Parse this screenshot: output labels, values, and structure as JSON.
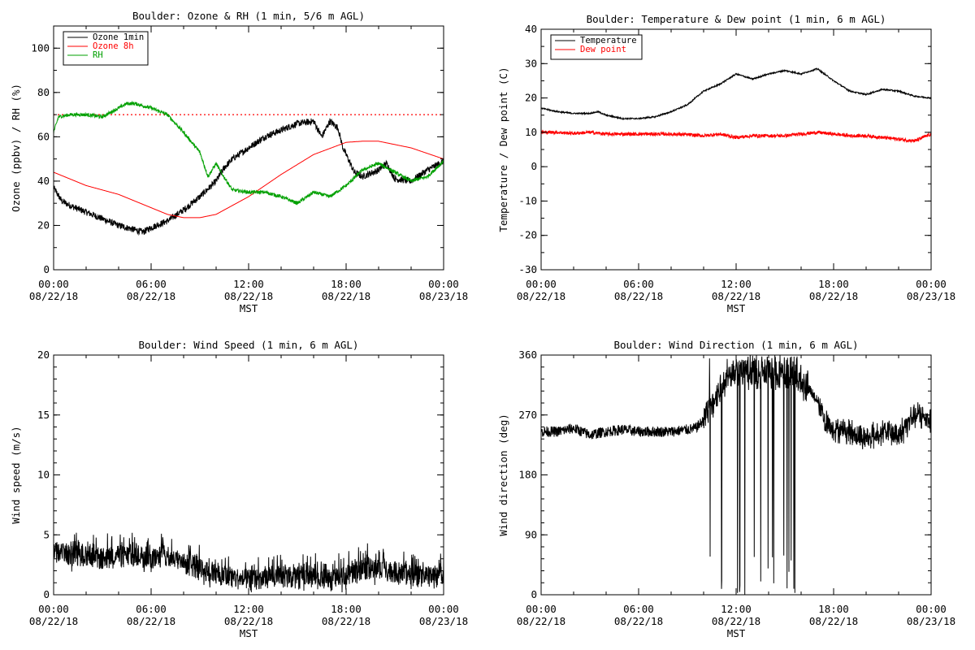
{
  "x_ticks": [
    {
      "hours": 0,
      "time": "00:00",
      "date": "08/22/18"
    },
    {
      "hours": 6,
      "time": "06:00",
      "date": "08/22/18"
    },
    {
      "hours": 12,
      "time": "12:00",
      "date": "08/22/18"
    },
    {
      "hours": 18,
      "time": "18:00",
      "date": "08/22/18"
    },
    {
      "hours": 24,
      "time": "00:00",
      "date": "08/23/18"
    }
  ],
  "chart_data": [
    {
      "id": "ozone",
      "type": "line",
      "title": "Boulder: Ozone & RH (1 min, 5/6 m AGL)",
      "ylabel": "Ozone (ppbv) / RH (%)",
      "xlabel": "MST",
      "xlim": [
        0,
        24
      ],
      "ylim": [
        0,
        110
      ],
      "yticks": [
        0,
        20,
        40,
        60,
        80,
        100
      ],
      "reference_line": {
        "y": 70,
        "style": "dotted",
        "color": "#ff0000"
      },
      "legend_position": "top-left",
      "series": [
        {
          "name": "Ozone 1min",
          "color": "#000000",
          "noise": 1.5,
          "x": [
            0,
            0.5,
            1,
            2,
            3,
            4,
            5,
            5.5,
            6,
            7,
            8,
            9,
            10,
            10.5,
            11,
            12,
            13,
            14,
            15,
            16,
            16.5,
            17,
            17.5,
            17.8,
            18,
            18.5,
            19,
            20,
            20.5,
            21,
            22,
            23,
            24
          ],
          "y": [
            37,
            31,
            29,
            26,
            23,
            20,
            18,
            17,
            19,
            22,
            27,
            33,
            40,
            46,
            50,
            55,
            60,
            63,
            66,
            67,
            60,
            67,
            64,
            55,
            52,
            44,
            42,
            45,
            48,
            41,
            40,
            45,
            49
          ]
        },
        {
          "name": "Ozone 8h",
          "color": "#ff0000",
          "noise": 0,
          "x": [
            0,
            2,
            4,
            6,
            7,
            8,
            9,
            10,
            12,
            14,
            16,
            18,
            19,
            20,
            22,
            24
          ],
          "y": [
            44,
            38,
            34,
            28,
            25,
            23.5,
            23.5,
            25,
            33,
            43,
            52,
            57.5,
            58,
            58,
            55,
            50
          ]
        },
        {
          "name": "RH",
          "color": "#00a000",
          "noise": 0.8,
          "x": [
            0,
            0.3,
            1,
            2,
            3,
            4,
            4.5,
            5,
            6,
            7,
            8,
            9,
            9.5,
            10,
            10.3,
            11,
            12,
            13,
            14,
            15,
            16,
            17,
            18,
            19,
            20,
            21,
            22,
            23,
            24
          ],
          "y": [
            62,
            69,
            70,
            70,
            69,
            73,
            75,
            75,
            73,
            70,
            62,
            53,
            42,
            48,
            44,
            36,
            35,
            35,
            33,
            30,
            35,
            33,
            38,
            45,
            48,
            44,
            40,
            42,
            49
          ]
        }
      ]
    },
    {
      "id": "temp",
      "type": "line",
      "title": "Boulder: Temperature & Dew point (1 min, 6 m AGL)",
      "ylabel": "Temperature / Dew point (C)",
      "xlabel": "MST",
      "xlim": [
        0,
        24
      ],
      "ylim": [
        -30,
        40
      ],
      "yticks": [
        -30,
        -20,
        -10,
        0,
        10,
        20,
        30,
        40
      ],
      "legend_position": "top-left",
      "series": [
        {
          "name": "Temperature",
          "color": "#000000",
          "noise": 0.2,
          "x": [
            0,
            1,
            2,
            3,
            3.5,
            4,
            5,
            6,
            7,
            8,
            9,
            10,
            11,
            12,
            13,
            14,
            15,
            16,
            17,
            18,
            19,
            20,
            21,
            22,
            23,
            24
          ],
          "y": [
            17,
            16,
            15.5,
            15.5,
            16,
            15,
            14,
            14,
            14.5,
            16,
            18,
            22,
            24,
            27,
            25.5,
            27,
            28,
            27,
            28.5,
            25,
            22,
            21,
            22.5,
            22,
            20.5,
            20
          ]
        },
        {
          "name": "Dew point",
          "color": "#ff0000",
          "noise": 0.5,
          "x": [
            0,
            1,
            2,
            3,
            4,
            5,
            6,
            7,
            8,
            9,
            10,
            11,
            12,
            13,
            14,
            15,
            16,
            17,
            18,
            19,
            20,
            21,
            22,
            23,
            24
          ],
          "y": [
            10,
            10,
            9.7,
            10,
            9.5,
            9.5,
            9.5,
            9.5,
            9.5,
            9.3,
            9,
            9.5,
            8.5,
            9,
            9,
            9,
            9.5,
            10,
            9.5,
            9,
            9,
            8.5,
            8,
            7.5,
            9.5
          ]
        }
      ]
    },
    {
      "id": "wspd",
      "type": "line",
      "title": "Boulder: Wind Speed (1 min, 6 m AGL)",
      "ylabel": "Wind speed (m/s)",
      "xlabel": "MST",
      "xlim": [
        0,
        24
      ],
      "ylim": [
        0,
        20
      ],
      "yticks": [
        0,
        5,
        10,
        15,
        20
      ],
      "series": [
        {
          "name": "",
          "color": "#000000",
          "noise": 0.9,
          "x": [
            0,
            1,
            2,
            3,
            4,
            5,
            6,
            7,
            8,
            9,
            10,
            11,
            12,
            13,
            14,
            15,
            16,
            17,
            18,
            19,
            20,
            21,
            22,
            23,
            24
          ],
          "y": [
            3.5,
            3.3,
            3.2,
            3.0,
            3.2,
            3.3,
            3.0,
            3.3,
            2.6,
            2.1,
            1.7,
            1.4,
            1.2,
            1.4,
            1.5,
            1.4,
            1.4,
            1.2,
            1.5,
            2.2,
            2.1,
            1.9,
            1.6,
            1.5,
            1.8
          ]
        }
      ]
    },
    {
      "id": "wdir",
      "type": "line",
      "title": "Boulder: Wind Direction (1 min, 6 m AGL)",
      "ylabel": "Wind direction (deg)",
      "xlabel": "MST",
      "xlim": [
        0,
        24
      ],
      "ylim": [
        0,
        360
      ],
      "yticks": [
        0,
        90,
        180,
        270,
        360
      ],
      "series": [
        {
          "name": "",
          "color": "#000000",
          "noise": 8,
          "x": [
            0,
            1,
            2,
            3,
            4,
            5,
            6,
            7,
            8,
            9,
            9.5,
            10,
            10.5,
            11,
            11.5,
            12,
            13,
            14,
            15,
            16,
            16.5,
            17,
            17.5,
            18,
            19,
            20,
            21,
            22,
            23,
            24
          ],
          "y": [
            245,
            245,
            250,
            240,
            245,
            248,
            245,
            245,
            245,
            248,
            250,
            262,
            285,
            310,
            330,
            340,
            330,
            335,
            330,
            320,
            310,
            290,
            260,
            250,
            245,
            235,
            245,
            240,
            270,
            265
          ]
        }
      ]
    }
  ]
}
